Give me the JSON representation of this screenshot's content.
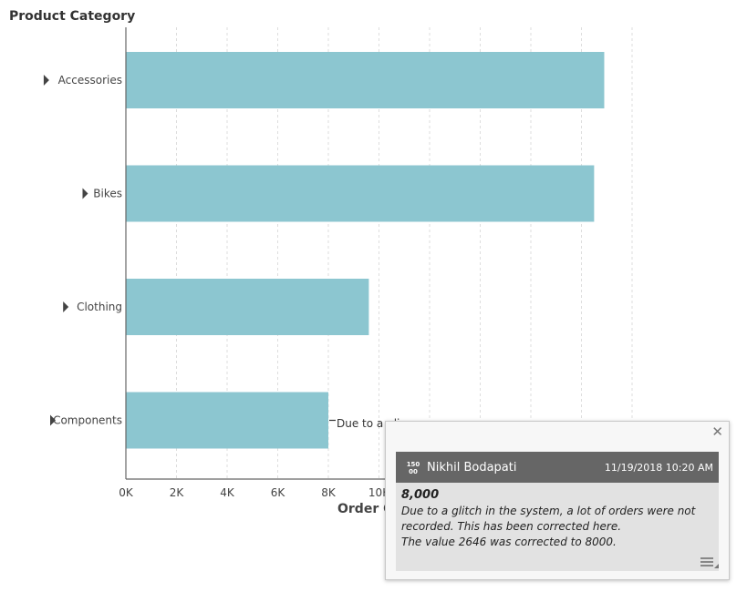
{
  "chart_data": {
    "type": "bar",
    "orientation": "horizontal",
    "categories": [
      "Accessories",
      "Bikes",
      "Clothing",
      "Components"
    ],
    "values": [
      18900,
      18500,
      9600,
      8000
    ],
    "xlim": [
      0,
      20000
    ],
    "xticks": [
      0,
      2000,
      4000,
      6000,
      8000,
      10000
    ],
    "xtick_labels": [
      "0K",
      "2K",
      "4K",
      "6K",
      "8K",
      "10K"
    ],
    "ylabel": "Product Category",
    "xlabel": "Order C",
    "grid": "vertical-dashed",
    "colors": {
      "bar": "#8cc6d0",
      "axis": "#666666",
      "grid": "#dddddd"
    }
  },
  "annotation": {
    "callout_text": "Due to a gli",
    "author": "Nikhil Bodapati",
    "timestamp": "11/19/2018 10:20 AM",
    "avatar_text": [
      "150",
      "00"
    ],
    "value": "8,000",
    "lines": [
      "Due to a glitch in the system, a lot of orders were not",
      "recorded. This has been corrected here.",
      "The value 2646 was corrected to 8000."
    ],
    "close_icon": "close-icon",
    "menu_icon": "menu-icon"
  }
}
